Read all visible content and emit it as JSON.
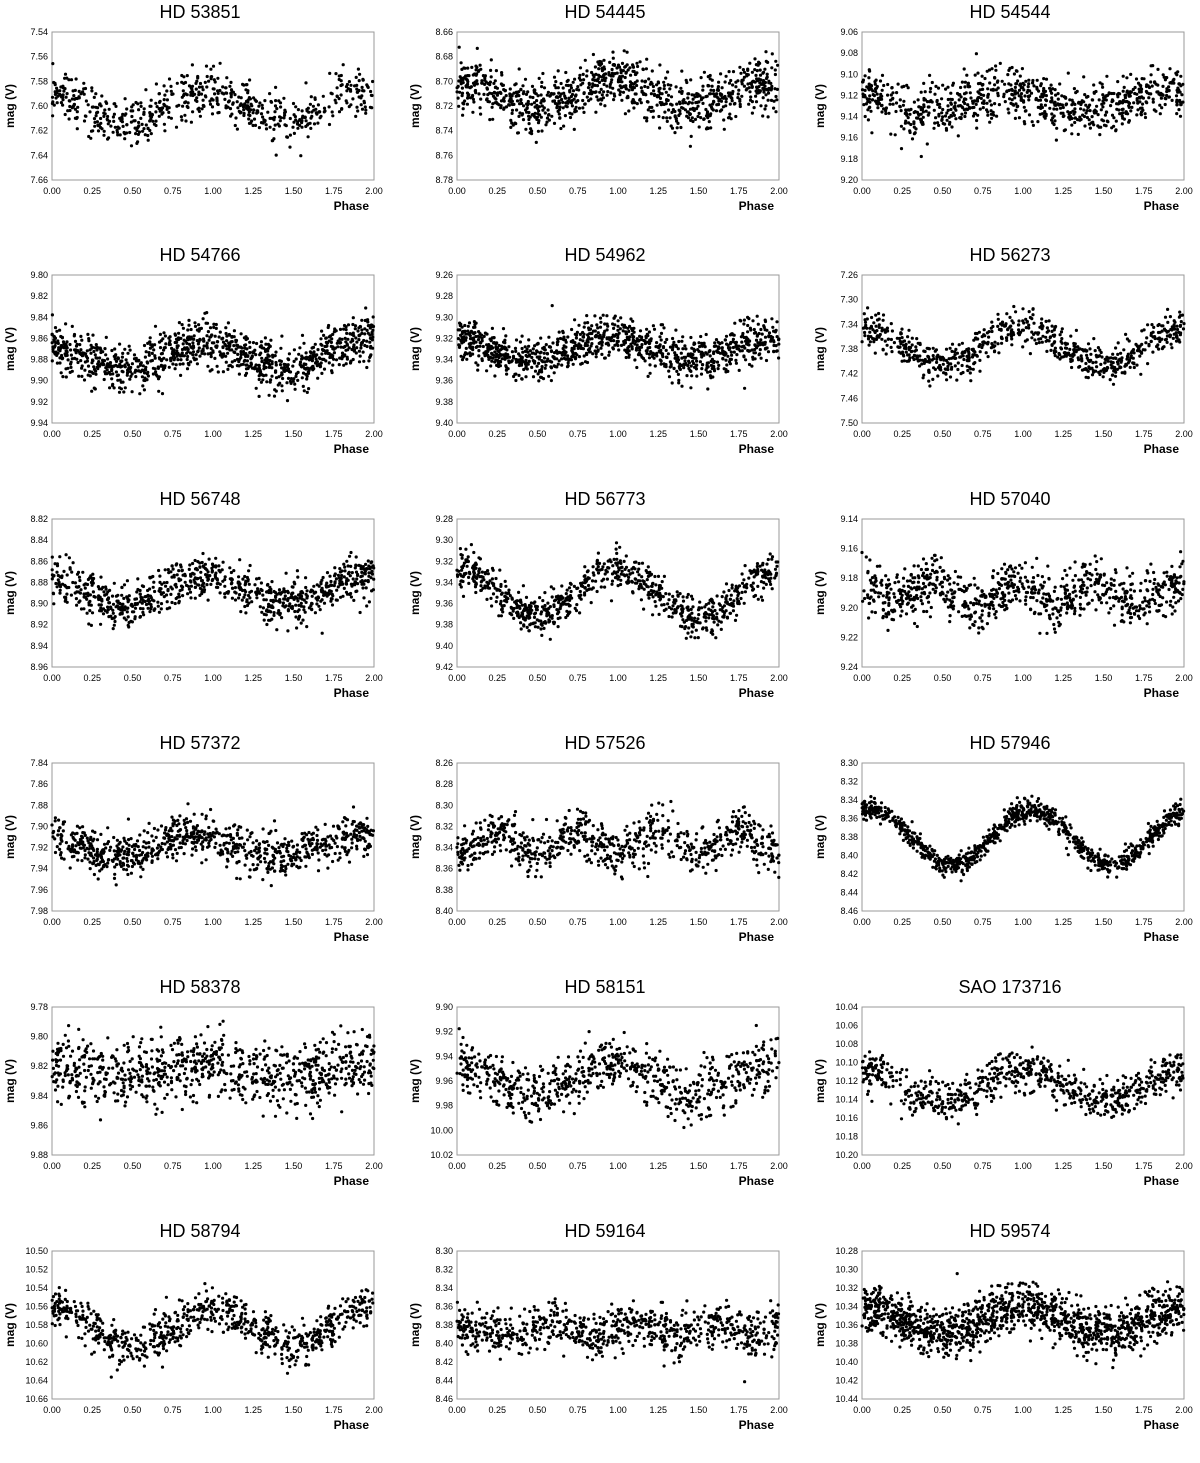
{
  "chart_data": [
    {
      "type": "scatter",
      "title": "HD 53851",
      "xlabel": "Phase",
      "ylabel": "mag (V)",
      "xlim": [
        0,
        2
      ],
      "ylim": [
        7.54,
        7.66
      ],
      "y_inverted": true,
      "xticks": [
        "0.00",
        "0.25",
        "0.50",
        "0.75",
        "1.00",
        "1.25",
        "1.50",
        "1.75",
        "2.00"
      ],
      "yticks": [
        "7.54",
        "7.56",
        "7.58",
        "7.60",
        "7.62",
        "7.64",
        "7.66"
      ],
      "mean": 7.6,
      "amplitude": 0.013,
      "harmonic": 1,
      "phase_of_min_light": 0.45,
      "scatter": 0.01,
      "points_per_cycle": 320,
      "grid": false,
      "legend": "none"
    },
    {
      "type": "scatter",
      "title": "HD 54445",
      "xlabel": "Phase",
      "ylabel": "mag (V)",
      "xlim": [
        0,
        2
      ],
      "ylim": [
        8.66,
        8.78
      ],
      "y_inverted": true,
      "xticks": [
        "0.00",
        "0.25",
        "0.50",
        "0.75",
        "1.00",
        "1.25",
        "1.50",
        "1.75",
        "2.00"
      ],
      "yticks": [
        "8.66",
        "8.68",
        "8.70",
        "8.72",
        "8.74",
        "8.76",
        "8.78"
      ],
      "mean": 8.71,
      "amplitude": 0.01,
      "harmonic": 1,
      "phase_of_min_light": 0.45,
      "scatter": 0.011,
      "points_per_cycle": 480,
      "grid": false,
      "legend": "none"
    },
    {
      "type": "scatter",
      "title": "HD 54544",
      "xlabel": "Phase",
      "ylabel": "mag (V)",
      "xlim": [
        0,
        2
      ],
      "ylim": [
        9.06,
        9.2
      ],
      "y_inverted": true,
      "xticks": [
        "0.00",
        "0.25",
        "0.50",
        "0.75",
        "1.00",
        "1.25",
        "1.50",
        "1.75",
        "2.00"
      ],
      "yticks": [
        "9.06",
        "9.08",
        "9.10",
        "9.12",
        "9.14",
        "9.16",
        "9.18",
        "9.20"
      ],
      "mean": 9.125,
      "amplitude": 0.01,
      "harmonic": 1,
      "phase_of_min_light": 0.4,
      "scatter": 0.012,
      "points_per_cycle": 420,
      "grid": false,
      "legend": "none"
    },
    {
      "type": "scatter",
      "title": "HD 54766",
      "xlabel": "Phase",
      "ylabel": "mag (V)",
      "xlim": [
        0,
        2
      ],
      "ylim": [
        9.8,
        9.94
      ],
      "y_inverted": true,
      "xticks": [
        "0.00",
        "0.25",
        "0.50",
        "0.75",
        "1.00",
        "1.25",
        "1.50",
        "1.75",
        "2.00"
      ],
      "yticks": [
        "9.80",
        "9.82",
        "9.84",
        "9.86",
        "9.88",
        "9.90",
        "9.92",
        "9.94"
      ],
      "mean": 9.876,
      "amplitude": 0.014,
      "harmonic": 1,
      "phase_of_min_light": 0.45,
      "scatter": 0.011,
      "points_per_cycle": 520,
      "grid": false,
      "legend": "none"
    },
    {
      "type": "scatter",
      "title": "HD 54962",
      "xlabel": "Phase",
      "ylabel": "mag (V)",
      "xlim": [
        0,
        2
      ],
      "ylim": [
        9.26,
        9.4
      ],
      "y_inverted": true,
      "xticks": [
        "0.00",
        "0.25",
        "0.50",
        "0.75",
        "1.00",
        "1.25",
        "1.50",
        "1.75",
        "2.00"
      ],
      "yticks": [
        "9.26",
        "9.28",
        "9.30",
        "9.32",
        "9.34",
        "9.36",
        "9.38",
        "9.40"
      ],
      "mean": 9.33,
      "amplitude": 0.011,
      "harmonic": 1,
      "phase_of_min_light": 0.45,
      "scatter": 0.01,
      "points_per_cycle": 520,
      "grid": false,
      "legend": "none"
    },
    {
      "type": "scatter",
      "title": "HD 56273",
      "xlabel": "Phase",
      "ylabel": "mag (V)",
      "xlim": [
        0,
        2
      ],
      "ylim": [
        7.26,
        7.5
      ],
      "y_inverted": true,
      "xticks": [
        "0.00",
        "0.25",
        "0.50",
        "0.75",
        "1.00",
        "1.25",
        "1.50",
        "1.75",
        "2.00"
      ],
      "yticks": [
        "7.26",
        "7.30",
        "7.34",
        "7.38",
        "7.42",
        "7.46",
        "7.50"
      ],
      "mean": 7.375,
      "amplitude": 0.03,
      "harmonic": 1,
      "phase_of_min_light": 0.5,
      "scatter": 0.015,
      "points_per_cycle": 360,
      "grid": false,
      "legend": "none"
    },
    {
      "type": "scatter",
      "title": "HD 56748",
      "xlabel": "Phase",
      "ylabel": "mag (V)",
      "xlim": [
        0,
        2
      ],
      "ylim": [
        8.82,
        8.96
      ],
      "y_inverted": true,
      "xticks": [
        "0.00",
        "0.25",
        "0.50",
        "0.75",
        "1.00",
        "1.25",
        "1.50",
        "1.75",
        "2.00"
      ],
      "yticks": [
        "8.82",
        "8.84",
        "8.86",
        "8.88",
        "8.90",
        "8.92",
        "8.94",
        "8.96"
      ],
      "mean": 8.888,
      "amplitude": 0.013,
      "harmonic": 1,
      "phase_of_min_light": 0.45,
      "scatter": 0.01,
      "points_per_cycle": 420,
      "grid": false,
      "legend": "none"
    },
    {
      "type": "scatter",
      "title": "HD 56773",
      "xlabel": "Phase",
      "ylabel": "mag (V)",
      "xlim": [
        0,
        2
      ],
      "ylim": [
        9.28,
        9.42
      ],
      "y_inverted": true,
      "xticks": [
        "0.00",
        "0.25",
        "0.50",
        "0.75",
        "1.00",
        "1.25",
        "1.50",
        "1.75",
        "2.00"
      ],
      "yticks": [
        "9.28",
        "9.30",
        "9.32",
        "9.34",
        "9.36",
        "9.38",
        "9.40",
        "9.42"
      ],
      "mean": 9.35,
      "amplitude": 0.022,
      "harmonic": 1,
      "phase_of_min_light": 0.5,
      "scatter": 0.009,
      "points_per_cycle": 420,
      "grid": false,
      "legend": "none"
    },
    {
      "type": "scatter",
      "title": "HD 57040",
      "xlabel": "Phase",
      "ylabel": "mag (V)",
      "xlim": [
        0,
        2
      ],
      "ylim": [
        9.14,
        9.24
      ],
      "y_inverted": true,
      "xticks": [
        "0.00",
        "0.25",
        "0.50",
        "0.75",
        "1.00",
        "1.25",
        "1.50",
        "1.75",
        "2.00"
      ],
      "yticks": [
        "9.14",
        "9.16",
        "9.18",
        "9.20",
        "9.22",
        "9.24"
      ],
      "mean": 9.19,
      "amplitude": 0.006,
      "harmonic": 2,
      "phase_of_min_light": 0.7,
      "scatter": 0.009,
      "points_per_cycle": 420,
      "grid": false,
      "legend": "none"
    },
    {
      "type": "scatter",
      "title": "HD 57372",
      "xlabel": "Phase",
      "ylabel": "mag (V)",
      "xlim": [
        0,
        2
      ],
      "ylim": [
        7.84,
        7.98
      ],
      "y_inverted": true,
      "xticks": [
        "0.00",
        "0.25",
        "0.50",
        "0.75",
        "1.00",
        "1.25",
        "1.50",
        "1.75",
        "2.00"
      ],
      "yticks": [
        "7.84",
        "7.86",
        "7.88",
        "7.90",
        "7.92",
        "7.94",
        "7.96",
        "7.98"
      ],
      "mean": 7.918,
      "amplitude": 0.01,
      "harmonic": 1,
      "phase_of_min_light": 0.4,
      "scatter": 0.01,
      "points_per_cycle": 420,
      "grid": false,
      "legend": "none"
    },
    {
      "type": "scatter",
      "title": "HD 57526",
      "xlabel": "Phase",
      "ylabel": "mag (V)",
      "xlim": [
        0,
        2
      ],
      "ylim": [
        8.26,
        8.4
      ],
      "y_inverted": true,
      "xticks": [
        "0.00",
        "0.25",
        "0.50",
        "0.75",
        "1.00",
        "1.25",
        "1.50",
        "1.75",
        "2.00"
      ],
      "yticks": [
        "8.26",
        "8.28",
        "8.30",
        "8.32",
        "8.34",
        "8.36",
        "8.38",
        "8.40"
      ],
      "mean": 8.335,
      "amplitude": 0.01,
      "harmonic": 2,
      "phase_of_min_light": 0.5,
      "scatter": 0.011,
      "points_per_cycle": 380,
      "grid": false,
      "legend": "none"
    },
    {
      "type": "scatter",
      "title": "HD 57946",
      "xlabel": "Phase",
      "ylabel": "mag (V)",
      "xlim": [
        0,
        2
      ],
      "ylim": [
        8.3,
        8.46
      ],
      "y_inverted": true,
      "xticks": [
        "0.00",
        "0.25",
        "0.50",
        "0.75",
        "1.00",
        "1.25",
        "1.50",
        "1.75",
        "2.00"
      ],
      "yticks": [
        "8.30",
        "8.32",
        "8.34",
        "8.36",
        "8.38",
        "8.40",
        "8.42",
        "8.44",
        "8.46"
      ],
      "mean": 8.38,
      "amplitude": 0.03,
      "harmonic": 1,
      "phase_of_min_light": 0.55,
      "scatter": 0.006,
      "points_per_cycle": 480,
      "grid": false,
      "legend": "none"
    },
    {
      "type": "scatter",
      "title": "HD 58378",
      "xlabel": "Phase",
      "ylabel": "mag (V)",
      "xlim": [
        0,
        2
      ],
      "ylim": [
        9.78,
        9.88
      ],
      "y_inverted": true,
      "xticks": [
        "0.00",
        "0.25",
        "0.50",
        "0.75",
        "1.00",
        "1.25",
        "1.50",
        "1.75",
        "2.00"
      ],
      "yticks": [
        "9.78",
        "9.80",
        "9.82",
        "9.84",
        "9.86",
        "9.88"
      ],
      "mean": 9.823,
      "amplitude": 0.004,
      "harmonic": 1,
      "phase_of_min_light": 0.45,
      "scatter": 0.011,
      "points_per_cycle": 420,
      "grid": false,
      "legend": "none"
    },
    {
      "type": "scatter",
      "title": "HD 58151",
      "xlabel": "Phase",
      "ylabel": "mag (V)",
      "xlim": [
        0,
        2
      ],
      "ylim": [
        9.9,
        10.02
      ],
      "y_inverted": true,
      "xticks": [
        "0.00",
        "0.25",
        "0.50",
        "0.75",
        "1.00",
        "1.25",
        "1.50",
        "1.75",
        "2.00"
      ],
      "yticks": [
        "9.90",
        "9.92",
        "9.94",
        "9.96",
        "9.98",
        "10.00",
        "10.02"
      ],
      "mean": 9.958,
      "amplitude": 0.013,
      "harmonic": 1,
      "phase_of_min_light": 0.45,
      "scatter": 0.011,
      "points_per_cycle": 360,
      "grid": false,
      "legend": "none"
    },
    {
      "type": "scatter",
      "title": "SAO 173716",
      "xlabel": "Phase",
      "ylabel": "mag (V)",
      "xlim": [
        0,
        2
      ],
      "ylim": [
        10.04,
        10.2
      ],
      "y_inverted": true,
      "xticks": [
        "0.00",
        "0.25",
        "0.50",
        "0.75",
        "1.00",
        "1.25",
        "1.50",
        "1.75",
        "2.00"
      ],
      "yticks": [
        "10.04",
        "10.06",
        "10.08",
        "10.10",
        "10.12",
        "10.14",
        "10.16",
        "10.18",
        "10.20"
      ],
      "mean": 10.125,
      "amplitude": 0.017,
      "harmonic": 1,
      "phase_of_min_light": 0.5,
      "scatter": 0.011,
      "points_per_cycle": 360,
      "grid": false,
      "legend": "none"
    },
    {
      "type": "scatter",
      "title": "HD 58794",
      "xlabel": "Phase",
      "ylabel": "mag (V)",
      "xlim": [
        0,
        2
      ],
      "ylim": [
        10.5,
        10.66
      ],
      "y_inverted": true,
      "xticks": [
        "0.00",
        "0.25",
        "0.50",
        "0.75",
        "1.00",
        "1.25",
        "1.50",
        "1.75",
        "2.00"
      ],
      "yticks": [
        "10.50",
        "10.52",
        "10.54",
        "10.56",
        "10.58",
        "10.60",
        "10.62",
        "10.64",
        "10.66"
      ],
      "mean": 10.582,
      "amplitude": 0.022,
      "harmonic": 1,
      "phase_of_min_light": 0.5,
      "scatter": 0.011,
      "points_per_cycle": 380,
      "grid": false,
      "legend": "none"
    },
    {
      "type": "scatter",
      "title": "HD 59164",
      "xlabel": "Phase",
      "ylabel": "mag (V)",
      "xlim": [
        0,
        2
      ],
      "ylim": [
        8.3,
        8.46
      ],
      "y_inverted": true,
      "xticks": [
        "0.00",
        "0.25",
        "0.50",
        "0.75",
        "1.00",
        "1.25",
        "1.50",
        "1.75",
        "2.00"
      ],
      "yticks": [
        "8.30",
        "8.32",
        "8.34",
        "8.36",
        "8.38",
        "8.40",
        "8.42",
        "8.44",
        "8.46"
      ],
      "mean": 8.385,
      "amplitude": 0.007,
      "harmonic": 2,
      "phase_of_min_light": 0.35,
      "scatter": 0.012,
      "points_per_cycle": 380,
      "grid": false,
      "legend": "none"
    },
    {
      "type": "scatter",
      "title": "HD 59574",
      "xlabel": "Phase",
      "ylabel": "mag (V)",
      "xlim": [
        0,
        2
      ],
      "ylim": [
        10.28,
        10.44
      ],
      "y_inverted": true,
      "xticks": [
        "0.00",
        "0.25",
        "0.50",
        "0.75",
        "1.00",
        "1.25",
        "1.50",
        "1.75",
        "2.00"
      ],
      "yticks": [
        "10.28",
        "10.30",
        "10.32",
        "10.34",
        "10.36",
        "10.38",
        "10.40",
        "10.42",
        "10.44"
      ],
      "mean": 10.355,
      "amplitude": 0.014,
      "harmonic": 1,
      "phase_of_min_light": 0.5,
      "scatter": 0.013,
      "points_per_cycle": 650,
      "grid": false,
      "legend": "none"
    }
  ]
}
